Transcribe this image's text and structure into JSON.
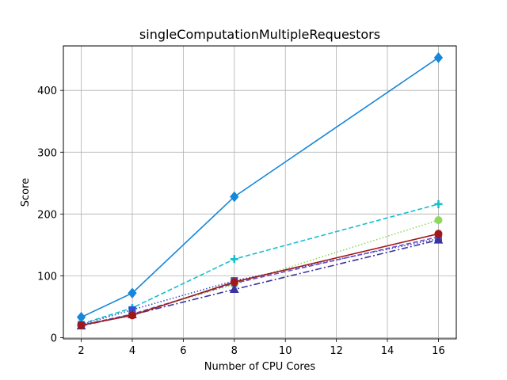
{
  "chart_data": {
    "type": "line",
    "title": "singleComputationMultipleRequestors",
    "xlabel": "Number of CPU Cores",
    "ylabel": "Score",
    "xlim": [
      1.3,
      16.7
    ],
    "ylim": [
      -2,
      472
    ],
    "xticks": [
      2,
      4,
      6,
      8,
      10,
      12,
      14,
      16
    ],
    "yticks": [
      0,
      100,
      200,
      300,
      400
    ],
    "grid": true,
    "x": [
      2,
      4,
      8,
      16
    ],
    "series": [
      {
        "color": "#1787d9",
        "dash": "solid",
        "marker": "diamond",
        "values": [
          33,
          72,
          228,
          453
        ]
      },
      {
        "color": "#17becf",
        "dash": "dashed",
        "marker": "plus",
        "values": [
          22,
          48,
          127,
          216
        ]
      },
      {
        "color": "#8ed85a",
        "dash": "dotted",
        "marker": "circle",
        "values": [
          20,
          38,
          86,
          190
        ]
      },
      {
        "color": "#3050d0",
        "dash": "dotted",
        "marker": "square",
        "values": [
          21,
          45,
          92,
          160
        ]
      },
      {
        "color": "#6a4cc0",
        "dash": "dashed",
        "marker": "pentagon",
        "values": [
          20,
          38,
          88,
          163
        ]
      },
      {
        "color": "#3a34a0",
        "dash": "dashdot",
        "marker": "triangle",
        "values": [
          19,
          37,
          78,
          158
        ]
      },
      {
        "color": "#a01818",
        "dash": "solid",
        "marker": "circle",
        "values": [
          20,
          36,
          90,
          168
        ]
      }
    ]
  }
}
